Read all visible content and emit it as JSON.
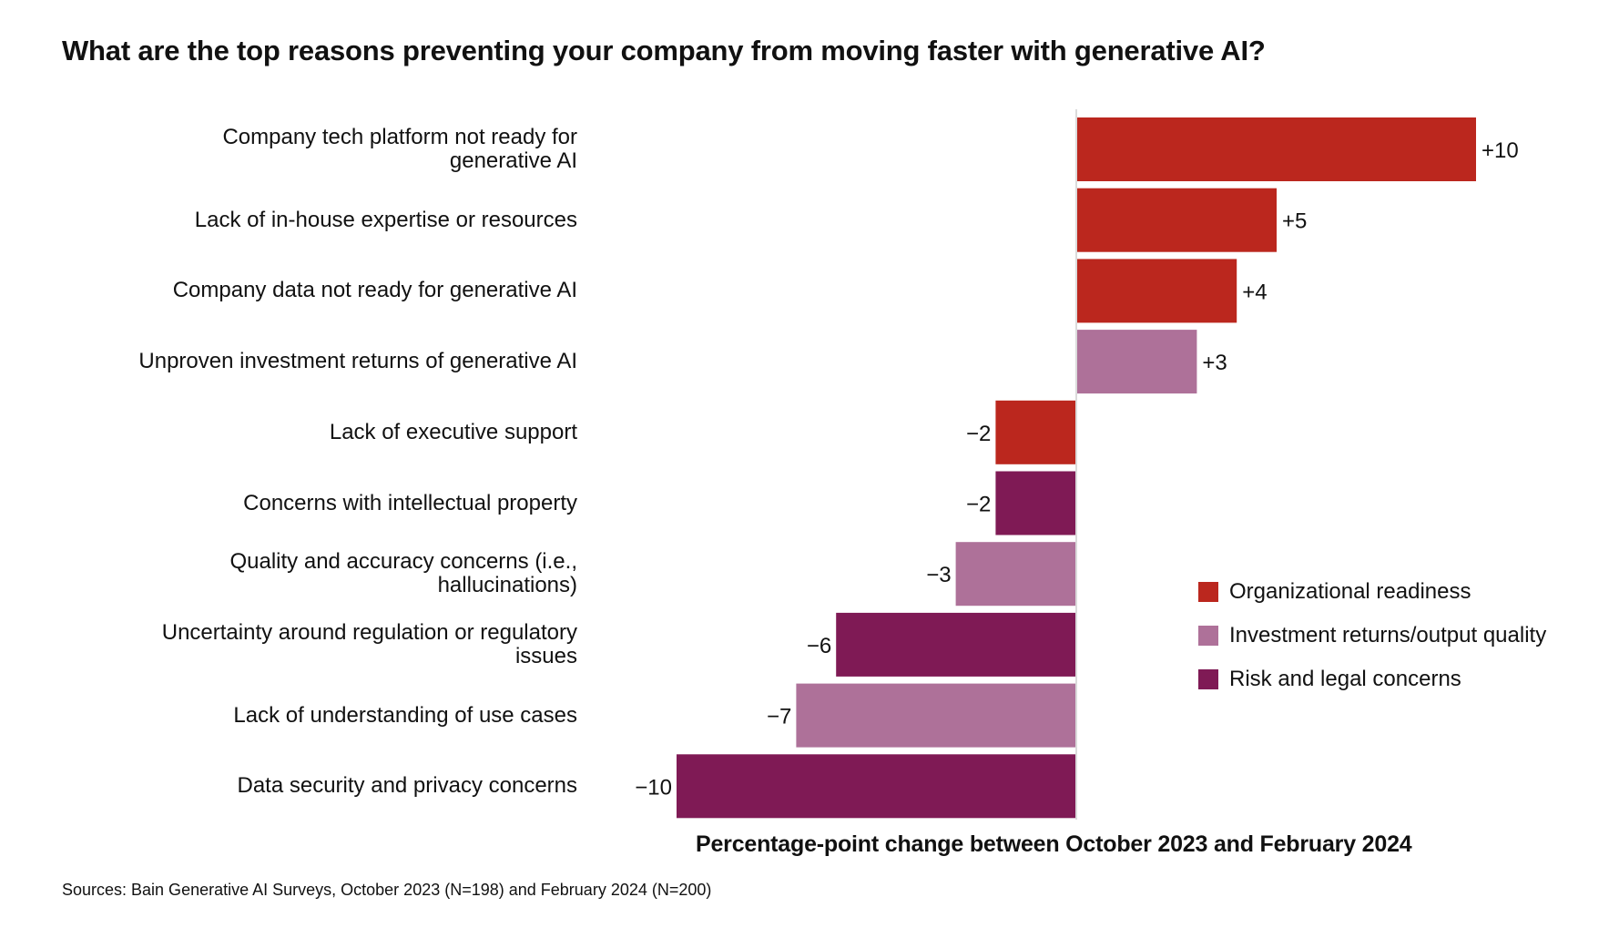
{
  "title": "What are the top reasons preventing your company from moving faster with generative AI?",
  "source": "Sources: Bain Generative AI Surveys, October 2023 (N=198) and February 2024 (N=200)",
  "chart_data": {
    "type": "bar",
    "orientation": "horizontal",
    "title": "What are the top reasons preventing your company from moving faster with generative AI?",
    "xlabel": "Percentage-point change between October 2023 and February 2024",
    "ylabel": "",
    "xlim": [
      -10,
      10
    ],
    "grid": false,
    "legend_position": "right",
    "categories": [
      [
        "Company tech platform not ready for",
        "generative AI"
      ],
      [
        "Lack of in-house expertise or resources"
      ],
      [
        "Company data not ready for generative AI"
      ],
      [
        "Unproven investment returns of generative AI"
      ],
      [
        "Lack of executive support"
      ],
      [
        "Concerns with intellectual property"
      ],
      [
        "Quality and accuracy concerns (i.e.,",
        "hallucinations)"
      ],
      [
        "Uncertainty around regulation or regulatory",
        "issues"
      ],
      [
        "Lack of understanding of use cases"
      ],
      [
        "Data security and privacy concerns"
      ]
    ],
    "values": [
      10,
      5,
      4,
      3,
      -2,
      -2,
      -3,
      -6,
      -7,
      -10
    ],
    "value_labels": [
      "+10",
      "+5",
      "+4",
      "+3",
      "−2",
      "−2",
      "−3",
      "−6",
      "−7",
      "−10"
    ],
    "groups": [
      "org",
      "org",
      "org",
      "inv",
      "org",
      "risk",
      "inv",
      "risk",
      "inv",
      "risk"
    ],
    "legend": [
      {
        "key": "org",
        "label": "Organizational readiness",
        "color": "#BB271E"
      },
      {
        "key": "inv",
        "label": "Investment returns/output quality",
        "color": "#AE7199"
      },
      {
        "key": "risk",
        "label": "Risk and legal concerns",
        "color": "#7F1A55"
      }
    ]
  }
}
